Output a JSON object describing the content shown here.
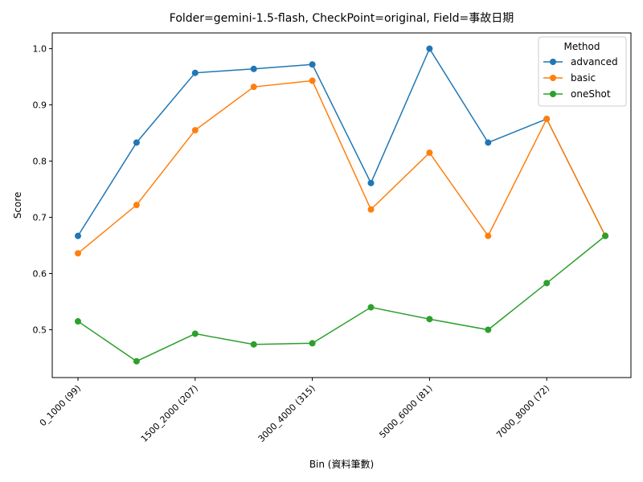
{
  "chart_data": {
    "type": "line",
    "title": "Folder=gemini-1.5-flash, CheckPoint=original, Field=事故日期",
    "xlabel": "Bin (資料筆數)",
    "ylabel": "Score",
    "x_tick_labels": [
      "0_1000 (99)",
      "1500_2000 (207)",
      "3000_4000 (315)",
      "5000_6000 (81)",
      "7000_8000 (72)"
    ],
    "x_tick_positions": [
      0,
      2,
      4,
      6,
      8
    ],
    "x_points": [
      0,
      1,
      2,
      3,
      4,
      5,
      6,
      7,
      8,
      9
    ],
    "ylim": [
      0.415,
      1.028
    ],
    "y_ticks": [
      0.5,
      0.6,
      0.7,
      0.8,
      0.9,
      1.0
    ],
    "y_tick_labels": [
      "0.5",
      "0.6",
      "0.7",
      "0.8",
      "0.9",
      "1.0"
    ],
    "legend": {
      "title": "Method",
      "position": "top-right"
    },
    "series": [
      {
        "name": "advanced",
        "color": "#1f77b4",
        "values": [
          0.667,
          0.833,
          0.957,
          0.964,
          0.972,
          0.761,
          1.0,
          0.833,
          0.875,
          0.667
        ]
      },
      {
        "name": "basic",
        "color": "#ff7f0e",
        "values": [
          0.636,
          0.722,
          0.855,
          0.932,
          0.943,
          0.714,
          0.815,
          0.667,
          0.875,
          0.667
        ]
      },
      {
        "name": "oneShot",
        "color": "#2ca02c",
        "values": [
          0.515,
          0.444,
          0.493,
          0.474,
          0.476,
          0.54,
          0.519,
          0.5,
          0.583,
          0.667
        ]
      }
    ]
  }
}
